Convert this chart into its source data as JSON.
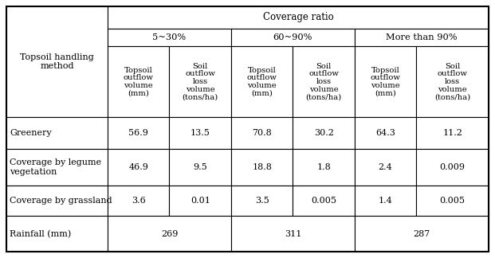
{
  "coverage_ratio_label": "Coverage ratio",
  "col_groups": [
    {
      "label": "5~30%"
    },
    {
      "label": "60~90%"
    },
    {
      "label": "More than 90%"
    }
  ],
  "sub_col_labels": [
    "Topsoil\noutflow\nvolume\n(mm)",
    "Soil\noutflow\nloss\nvolume\n(tons/ha)",
    "Topsoil\noutflow\nvolume\n(mm)",
    "Soil\noutflow\nloss\nvolume\n(tons/ha)",
    "Topsoil\noutflow\nvolume\n(mm)",
    "Soil\noutflow\nloss\nvolume\n(tons/ha)"
  ],
  "row_header_label": "Topsoil handling\nmethod",
  "data_rows": [
    {
      "label": "Greenery",
      "values": [
        "56.9",
        "13.5",
        "70.8",
        "30.2",
        "64.3",
        "11.2"
      ],
      "label_align": "left"
    },
    {
      "label": "Coverage by legume\nvegetation",
      "values": [
        "46.9",
        "9.5",
        "18.8",
        "1.8",
        "2.4",
        "0.009"
      ],
      "label_align": "left"
    },
    {
      "label": "Coverage by grassland",
      "values": [
        "3.6",
        "0.01",
        "3.5",
        "0.005",
        "1.4",
        "0.005"
      ],
      "label_align": "left"
    }
  ],
  "rainfall_row": {
    "label": "Rainfall (mm)",
    "values": [
      "269",
      "311",
      "287"
    ]
  },
  "bg_color": "#ffffff",
  "border_color": "#000000",
  "font_size": 8.0,
  "sub_header_font_size": 7.2,
  "group_font_size": 8.2,
  "title_font_size": 8.5
}
